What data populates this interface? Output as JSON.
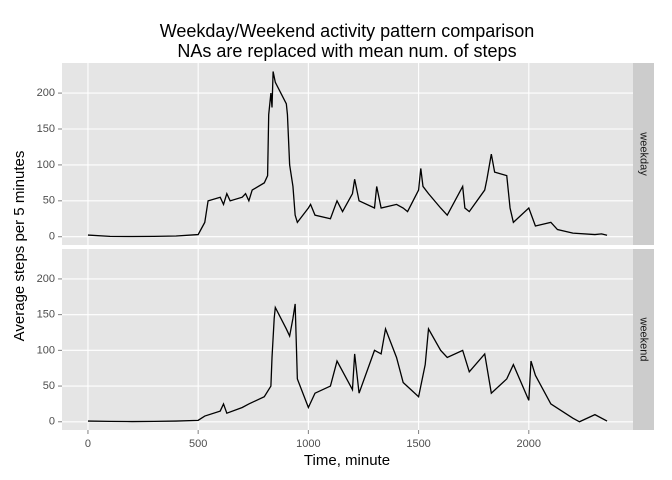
{
  "chart_data": {
    "type": "line",
    "title": "Weekday/Weekend activity pattern comparison",
    "subtitle": "NAs are replaced with mean num. of steps",
    "x_label": "Time, minute",
    "y_label": "Average steps per 5 minutes",
    "xlim": [
      -117.75,
      2472.75
    ],
    "xticks": [
      0,
      500,
      1000,
      1500,
      2000
    ],
    "ylim": [
      -11.52,
      241.9
    ],
    "yticks": [
      0,
      50,
      100,
      150,
      200
    ],
    "grid": true,
    "panel_color": "#e5e5e5",
    "strip_color": "#cccccc",
    "facets": [
      {
        "name": "weekday",
        "color": "#000000",
        "x": [
          0,
          100,
          200,
          300,
          400,
          500,
          530,
          545,
          600,
          615,
          630,
          645,
          700,
          715,
          730,
          745,
          800,
          815,
          820,
          830,
          835,
          840,
          850,
          900,
          905,
          915,
          930,
          940,
          950,
          1000,
          1010,
          1030,
          1100,
          1130,
          1155,
          1200,
          1210,
          1230,
          1300,
          1310,
          1330,
          1400,
          1430,
          1450,
          1500,
          1510,
          1520,
          1545,
          1600,
          1630,
          1700,
          1710,
          1730,
          1800,
          1810,
          1830,
          1845,
          1900,
          1915,
          1930,
          2000,
          2030,
          2100,
          2130,
          2200,
          2300,
          2330,
          2355
        ],
        "values": [
          2.3,
          0.5,
          0.3,
          0.5,
          1,
          3,
          20,
          50,
          55,
          45,
          60,
          50,
          55,
          60,
          50,
          65,
          75,
          85,
          170,
          200,
          180,
          230,
          215,
          185,
          170,
          100,
          70,
          30,
          20,
          40,
          45,
          30,
          25,
          50,
          35,
          60,
          80,
          50,
          40,
          70,
          40,
          45,
          40,
          35,
          65,
          95,
          70,
          60,
          40,
          30,
          70,
          40,
          35,
          65,
          80,
          115,
          90,
          85,
          40,
          20,
          40,
          15,
          20,
          10,
          5,
          3,
          4,
          2
        ]
      },
      {
        "name": "weekend",
        "color": "#000000",
        "x": [
          0,
          100,
          200,
          300,
          400,
          500,
          515,
          530,
          600,
          615,
          630,
          700,
          730,
          800,
          830,
          835,
          845,
          850,
          900,
          915,
          930,
          940,
          950,
          1000,
          1030,
          1100,
          1130,
          1200,
          1210,
          1230,
          1300,
          1330,
          1350,
          1400,
          1430,
          1500,
          1530,
          1545,
          1600,
          1630,
          1700,
          1730,
          1800,
          1830,
          1900,
          1930,
          2000,
          2010,
          2030,
          2100,
          2200,
          2230,
          2300,
          2355
        ],
        "values": [
          1,
          0.5,
          0.3,
          0.5,
          1,
          2,
          5,
          8,
          15,
          25,
          12,
          20,
          25,
          35,
          50,
          90,
          145,
          160,
          130,
          120,
          145,
          165,
          60,
          20,
          40,
          50,
          85,
          45,
          95,
          40,
          100,
          95,
          130,
          90,
          55,
          35,
          80,
          130,
          100,
          90,
          100,
          70,
          95,
          40,
          60,
          80,
          30,
          85,
          65,
          25,
          5,
          0,
          10,
          1
        ]
      }
    ]
  }
}
